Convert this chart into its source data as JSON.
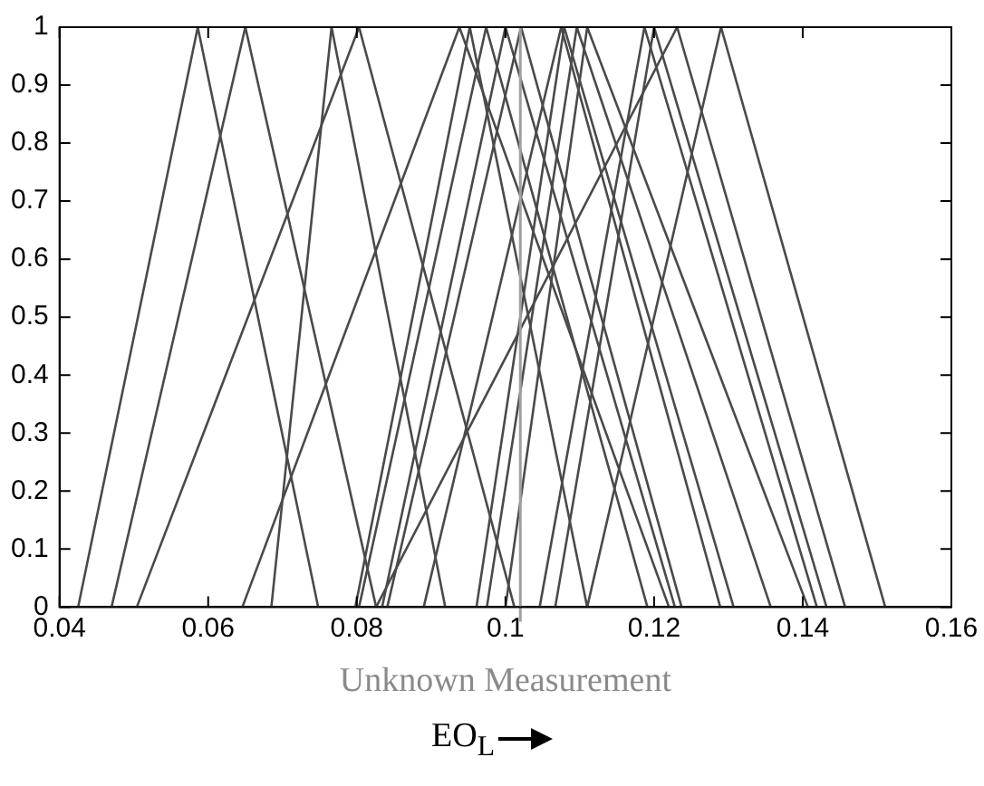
{
  "chart_data": {
    "type": "line",
    "xlabel": "Unknown Measurement",
    "annotations": [
      "EO$_{L}$"
    ],
    "xlim": [
      0.04,
      0.16
    ],
    "xticks": [
      0.04,
      0.06,
      0.08,
      0.1,
      0.12,
      0.14,
      0.16
    ],
    "ylim": [
      0,
      1
    ],
    "yticks": [
      0,
      0.1,
      0.2,
      0.3,
      0.4,
      0.5,
      0.6,
      0.7,
      0.8,
      0.9,
      1
    ],
    "grid": false,
    "legend": false,
    "marker": "none",
    "line_style": "solid",
    "ref_lines": [
      {
        "axis": "x",
        "value": 0.102,
        "color": "#a0a0a0"
      }
    ],
    "series": [
      {
        "color": "#4a4a4a",
        "x": [
          0.0425,
          0.0586,
          0.0748
        ],
        "values": [
          0,
          1,
          0
        ]
      },
      {
        "color": "#4a4a4a",
        "x": [
          0.047,
          0.065,
          0.0826
        ],
        "values": [
          0,
          1,
          0
        ]
      },
      {
        "color": "#4a4a4a",
        "x": [
          0.0685,
          0.0766,
          0.0919
        ],
        "values": [
          0,
          1,
          0
        ]
      },
      {
        "color": "#4a4a4a",
        "x": [
          0.0504,
          0.0803,
          0.1012
        ],
        "values": [
          0,
          1,
          0
        ]
      },
      {
        "color": "#4a4a4a",
        "x": [
          0.0646,
          0.0938,
          0.122
        ],
        "values": [
          0,
          1,
          0
        ]
      },
      {
        "color": "#4a4a4a",
        "x": [
          0.0798,
          0.0952,
          0.111
        ],
        "values": [
          0,
          1,
          0
        ]
      },
      {
        "color": "#4a4a4a",
        "x": [
          0.0803,
          0.0974,
          0.1191
        ],
        "values": [
          0,
          1,
          0
        ]
      },
      {
        "color": "#4a4a4a",
        "x": [
          0.0834,
          0.1,
          0.1228
        ],
        "values": [
          0,
          1,
          0
        ]
      },
      {
        "color": "#4a4a4a",
        "x": [
          0.0841,
          0.1021,
          0.1237
        ],
        "values": [
          0,
          1,
          0
        ]
      },
      {
        "color": "#4a4a4a",
        "x": [
          0.089,
          0.1075,
          0.1289
        ],
        "values": [
          0,
          1,
          0
        ]
      },
      {
        "color": "#4a4a4a",
        "x": [
          0.0961,
          0.1079,
          0.1307
        ],
        "values": [
          0,
          1,
          0
        ]
      },
      {
        "color": "#4a4a4a",
        "x": [
          0.0975,
          0.1096,
          0.1357
        ],
        "values": [
          0,
          1,
          0
        ]
      },
      {
        "color": "#4a4a4a",
        "x": [
          0.1,
          0.111,
          0.1407
        ],
        "values": [
          0,
          1,
          0
        ]
      },
      {
        "color": "#4a4a4a",
        "x": [
          0.1046,
          0.1187,
          0.1419
        ],
        "values": [
          0,
          1,
          0
        ]
      },
      {
        "color": "#4a4a4a",
        "x": [
          0.1067,
          0.12,
          0.1432
        ],
        "values": [
          0,
          1,
          0
        ]
      },
      {
        "color": "#4a4a4a",
        "x": [
          0.0826,
          0.1231,
          0.1457
        ],
        "values": [
          0,
          1,
          0
        ]
      },
      {
        "color": "#4a4a4a",
        "x": [
          0.111,
          0.129,
          0.1511
        ],
        "values": [
          0,
          1,
          0
        ]
      }
    ]
  }
}
